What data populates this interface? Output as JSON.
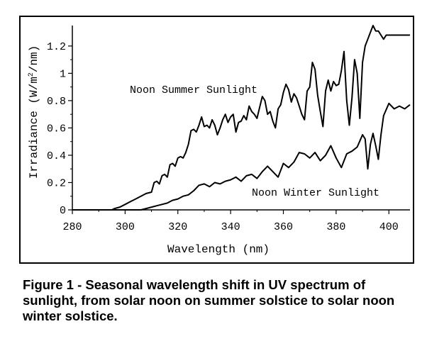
{
  "chart_data": {
    "type": "line",
    "title": "",
    "xlabel": "Wavelength (nm)",
    "ylabel_prefix": "Irradiance (W/m",
    "ylabel_sup": "2",
    "ylabel_suffix": "/nm)",
    "xlim": [
      280,
      408
    ],
    "ylim": [
      0,
      1.35
    ],
    "x_ticks": [
      280,
      300,
      320,
      340,
      360,
      380,
      400
    ],
    "y_ticks": [
      0,
      0.2,
      0.4,
      0.6,
      0.8,
      1,
      1.2
    ],
    "y_tick_labels": [
      "0",
      "0.2",
      "0.4",
      "0.6",
      "0.8",
      "1",
      "1.2"
    ],
    "series": [
      {
        "name": "Noon Summer Sunlight",
        "x": [
          280,
          295,
          296,
          298,
          300,
          302,
          304,
          306,
          308,
          310,
          311,
          312,
          313,
          314,
          315,
          316,
          317,
          318,
          319,
          320,
          321,
          322,
          323,
          324,
          325,
          326,
          327,
          328,
          329,
          330,
          331,
          332,
          333,
          334,
          335,
          336,
          337,
          338,
          339,
          340,
          341,
          342,
          343,
          344,
          345,
          346,
          347,
          348,
          349,
          350,
          351,
          352,
          353,
          354,
          355,
          356,
          357,
          358,
          359,
          360,
          361,
          362,
          363,
          364,
          365,
          366,
          367,
          368,
          369,
          370,
          371,
          372,
          373,
          374,
          375,
          376,
          377,
          378,
          379,
          380,
          381,
          382,
          383,
          384,
          385,
          386,
          387,
          388,
          389,
          390,
          391,
          392,
          393,
          394,
          395,
          396,
          397,
          398,
          399,
          400,
          401,
          402,
          403,
          404,
          405,
          406,
          407,
          408
        ],
        "y": [
          0,
          0,
          0.01,
          0.02,
          0.04,
          0.06,
          0.08,
          0.1,
          0.12,
          0.13,
          0.2,
          0.21,
          0.19,
          0.25,
          0.26,
          0.24,
          0.33,
          0.34,
          0.32,
          0.38,
          0.39,
          0.38,
          0.42,
          0.48,
          0.58,
          0.59,
          0.57,
          0.62,
          0.68,
          0.61,
          0.62,
          0.6,
          0.66,
          0.62,
          0.55,
          0.6,
          0.66,
          0.7,
          0.64,
          0.68,
          0.7,
          0.57,
          0.64,
          0.65,
          0.69,
          0.66,
          0.76,
          0.72,
          0.7,
          0.67,
          0.75,
          0.83,
          0.8,
          0.7,
          0.72,
          0.65,
          0.6,
          0.74,
          0.77,
          0.86,
          0.92,
          0.88,
          0.79,
          0.85,
          0.82,
          0.76,
          0.7,
          0.66,
          0.87,
          0.9,
          1.08,
          1.03,
          0.84,
          0.72,
          0.61,
          0.87,
          0.95,
          0.87,
          0.94,
          0.91,
          0.92,
          1.02,
          1.16,
          0.8,
          0.62,
          0.82,
          1.1,
          1.0,
          0.67,
          1.08,
          1.2,
          1.25,
          1.3,
          1.35,
          1.31,
          1.31,
          1.28,
          1.25,
          1.28,
          1.28,
          1.28,
          1.28,
          1.28,
          1.28,
          1.28,
          1.28,
          1.28,
          1.28
        ]
      },
      {
        "name": "Noon Winter Sunlight",
        "x": [
          280,
          306,
          308,
          310,
          312,
          314,
          316,
          318,
          320,
          322,
          324,
          326,
          328,
          330,
          332,
          334,
          336,
          338,
          340,
          342,
          344,
          346,
          348,
          350,
          352,
          354,
          356,
          358,
          360,
          362,
          364,
          366,
          368,
          370,
          372,
          374,
          376,
          378,
          380,
          382,
          384,
          386,
          388,
          390,
          391,
          392,
          393,
          394,
          395,
          396,
          397,
          398,
          400,
          402,
          404,
          406,
          408
        ],
        "y": [
          0,
          0,
          0.01,
          0.02,
          0.03,
          0.04,
          0.05,
          0.07,
          0.08,
          0.1,
          0.11,
          0.14,
          0.18,
          0.19,
          0.17,
          0.2,
          0.19,
          0.21,
          0.22,
          0.24,
          0.21,
          0.25,
          0.26,
          0.23,
          0.28,
          0.32,
          0.28,
          0.24,
          0.34,
          0.31,
          0.35,
          0.42,
          0.41,
          0.38,
          0.42,
          0.36,
          0.4,
          0.47,
          0.38,
          0.31,
          0.41,
          0.43,
          0.46,
          0.55,
          0.52,
          0.3,
          0.48,
          0.56,
          0.47,
          0.37,
          0.55,
          0.69,
          0.78,
          0.74,
          0.76,
          0.74,
          0.77
        ]
      }
    ],
    "annotations": [
      "Noon Summer Sunlight",
      "Noon Winter Sunlight"
    ]
  },
  "caption": "Figure 1 - Seasonal wavelength shift in UV spectrum of sunlight, from solar noon on summer solstice to solar noon winter solstice."
}
